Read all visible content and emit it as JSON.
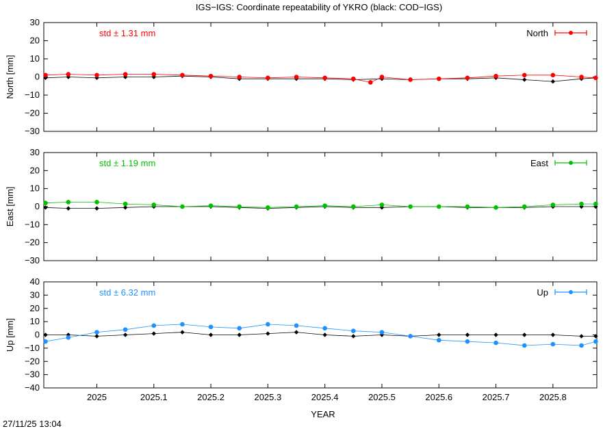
{
  "title": "IGS−IGS: Coordinate repeatability of YKRO (black: COD−IGS)",
  "footer_timestamp": "27/11/25 13:04",
  "chart_data": {
    "type": "scatter",
    "xlabel": "YEAR",
    "xlim": [
      2024.907,
      2025.877
    ],
    "x_ticks": [
      2025,
      2025.1,
      2025.2,
      2025.3,
      2025.4,
      2025.5,
      2025.6,
      2025.7,
      2025.8
    ],
    "x_tick_labels": [
      "2025",
      "2025.1",
      "2025.2",
      "2025.3",
      "2025.4",
      "2025.5",
      "2025.6",
      "2025.7",
      "2025.8"
    ],
    "grid": false,
    "legend_placement": "top-right",
    "panels": [
      {
        "id": "north",
        "ylabel": "North [mm]",
        "ylim": [
          -30,
          30
        ],
        "yticks": [
          -30,
          -20,
          -10,
          0,
          10,
          20,
          30
        ],
        "std_label": "std ± 1.31 mm",
        "legend": "North",
        "color": "#ff0000",
        "series": [
          {
            "name": "North",
            "color": "#ff0000",
            "x": [
              2024.91,
              2024.95,
              2025.0,
              2025.05,
              2025.1,
              2025.15,
              2025.2,
              2025.25,
              2025.3,
              2025.35,
              2025.4,
              2025.45,
              2025.48,
              2025.5,
              2025.55,
              2025.6,
              2025.65,
              2025.7,
              2025.75,
              2025.8,
              2025.85,
              2025.875
            ],
            "y": [
              1.0,
              1.5,
              1.0,
              1.5,
              1.5,
              1.0,
              0.5,
              0.0,
              -0.5,
              0.0,
              -0.5,
              -1.0,
              -3.0,
              0.0,
              -1.5,
              -1.0,
              -0.5,
              0.5,
              1.0,
              1.0,
              0.0,
              -0.5
            ]
          },
          {
            "name": "COD−IGS",
            "color": "#000000",
            "x": [
              2024.91,
              2024.95,
              2025.0,
              2025.05,
              2025.1,
              2025.15,
              2025.2,
              2025.25,
              2025.3,
              2025.35,
              2025.4,
              2025.45,
              2025.5,
              2025.55,
              2025.6,
              2025.65,
              2025.7,
              2025.75,
              2025.8,
              2025.85,
              2025.875
            ],
            "y": [
              -0.5,
              0.0,
              -0.5,
              0.0,
              0.0,
              0.5,
              0.0,
              -1.0,
              -1.0,
              -1.0,
              -1.0,
              -1.5,
              -1.0,
              -1.5,
              -1.0,
              -1.0,
              -0.5,
              -1.5,
              -2.5,
              -1.0,
              -0.5
            ]
          }
        ]
      },
      {
        "id": "east",
        "ylabel": "East [mm]",
        "ylim": [
          -30,
          30
        ],
        "yticks": [
          -30,
          -20,
          -10,
          0,
          10,
          20,
          30
        ],
        "std_label": "std ± 1.19 mm",
        "legend": "East",
        "color": "#00c000",
        "series": [
          {
            "name": "East",
            "color": "#00c000",
            "x": [
              2024.91,
              2024.95,
              2025.0,
              2025.05,
              2025.1,
              2025.15,
              2025.2,
              2025.25,
              2025.3,
              2025.35,
              2025.4,
              2025.45,
              2025.5,
              2025.55,
              2025.6,
              2025.65,
              2025.7,
              2025.75,
              2025.8,
              2025.85,
              2025.875
            ],
            "y": [
              2.0,
              2.5,
              2.5,
              1.5,
              1.0,
              0.0,
              0.5,
              0.0,
              -0.5,
              0.0,
              0.5,
              0.0,
              1.0,
              0.0,
              0.0,
              0.0,
              -0.5,
              0.0,
              1.0,
              1.5,
              1.5
            ]
          },
          {
            "name": "COD−IGS",
            "color": "#000000",
            "x": [
              2024.91,
              2024.95,
              2025.0,
              2025.05,
              2025.1,
              2025.15,
              2025.2,
              2025.25,
              2025.3,
              2025.35,
              2025.4,
              2025.45,
              2025.5,
              2025.55,
              2025.6,
              2025.65,
              2025.7,
              2025.75,
              2025.8,
              2025.85,
              2025.875
            ],
            "y": [
              -0.5,
              -1.0,
              -1.0,
              -0.5,
              0.0,
              0.0,
              0.0,
              -0.5,
              -1.0,
              -0.5,
              0.0,
              -0.5,
              -0.5,
              0.0,
              0.0,
              -0.5,
              -0.5,
              -0.5,
              0.0,
              0.0,
              0.0
            ]
          }
        ]
      },
      {
        "id": "up",
        "ylabel": "Up [mm]",
        "ylim": [
          -40,
          40
        ],
        "yticks": [
          -40,
          -30,
          -20,
          -10,
          0,
          10,
          20,
          30,
          40
        ],
        "std_label": "std ± 6.32 mm",
        "legend": "Up",
        "color": "#1e90ff",
        "series": [
          {
            "name": "Up",
            "color": "#1e90ff",
            "x": [
              2024.91,
              2024.95,
              2025.0,
              2025.05,
              2025.1,
              2025.15,
              2025.2,
              2025.25,
              2025.3,
              2025.35,
              2025.4,
              2025.45,
              2025.5,
              2025.55,
              2025.6,
              2025.65,
              2025.7,
              2025.75,
              2025.8,
              2025.85,
              2025.875
            ],
            "y": [
              -5.0,
              -2.0,
              2.0,
              4.0,
              7.0,
              8.0,
              6.0,
              5.0,
              8.0,
              7.0,
              5.0,
              3.0,
              2.0,
              -1.0,
              -4.0,
              -5.0,
              -6.0,
              -8.0,
              -7.0,
              -8.0,
              -5.0
            ]
          },
          {
            "name": "COD−IGS",
            "color": "#000000",
            "x": [
              2024.91,
              2024.95,
              2025.0,
              2025.05,
              2025.1,
              2025.15,
              2025.2,
              2025.25,
              2025.3,
              2025.35,
              2025.4,
              2025.45,
              2025.5,
              2025.55,
              2025.6,
              2025.65,
              2025.7,
              2025.75,
              2025.8,
              2025.85,
              2025.875
            ],
            "y": [
              0.0,
              0.0,
              -1.0,
              0.0,
              1.0,
              2.0,
              0.0,
              0.0,
              1.0,
              2.0,
              0.0,
              -1.0,
              0.0,
              -1.0,
              0.0,
              0.0,
              0.0,
              0.0,
              0.0,
              -1.0,
              -1.0
            ]
          }
        ]
      }
    ]
  }
}
